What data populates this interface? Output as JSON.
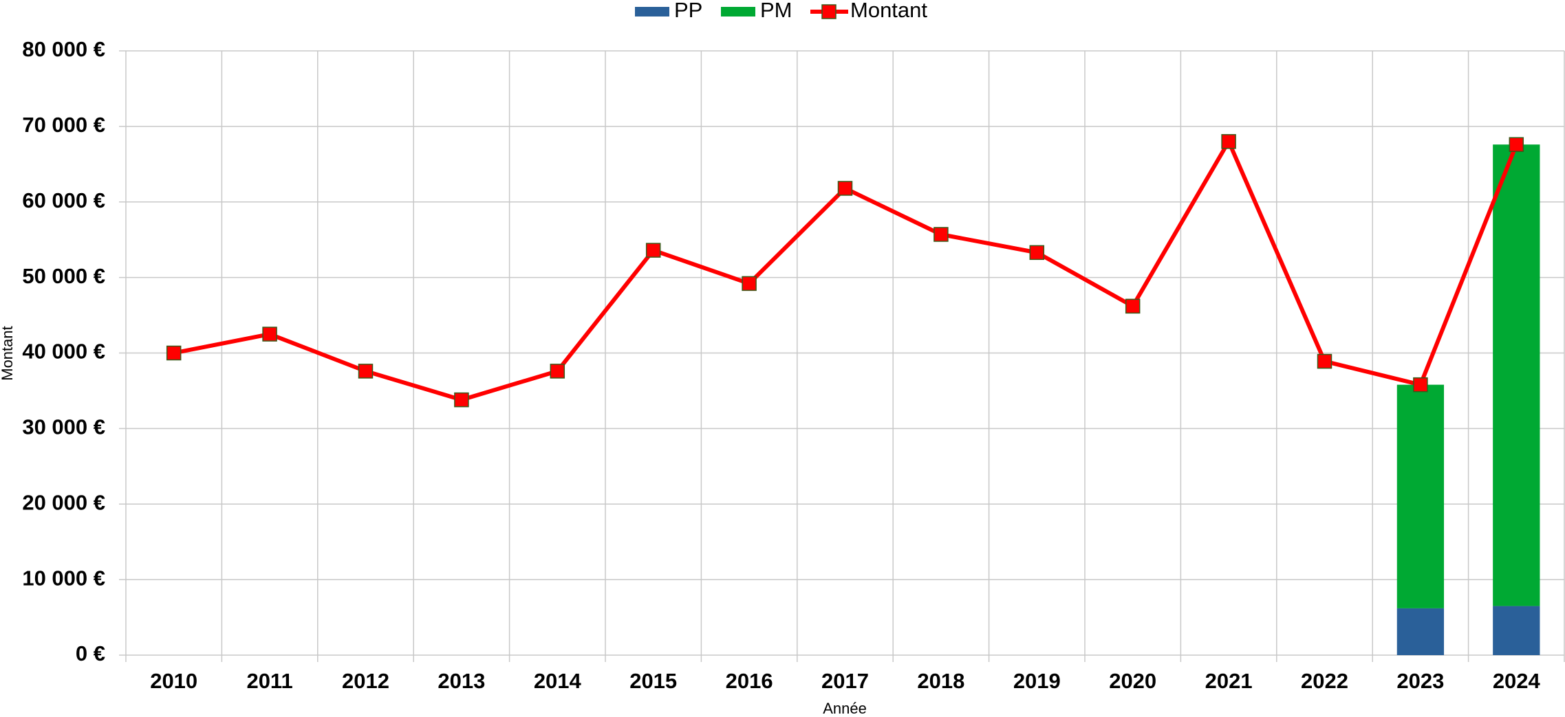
{
  "chart_data": {
    "type": "bar",
    "stacked": true,
    "x_label": "Année",
    "y_label": "Montant",
    "categories": [
      "2010",
      "2011",
      "2012",
      "2013",
      "2014",
      "2015",
      "2016",
      "2017",
      "2018",
      "2019",
      "2020",
      "2021",
      "2022",
      "2023",
      "2024"
    ],
    "series": [
      {
        "name": "PP",
        "type": "bar",
        "color": "#2a6099",
        "values": [
          null,
          null,
          null,
          null,
          null,
          null,
          null,
          null,
          null,
          null,
          null,
          null,
          null,
          6200,
          6500
        ]
      },
      {
        "name": "PM",
        "type": "bar",
        "color": "#00a933",
        "values": [
          null,
          null,
          null,
          null,
          null,
          null,
          null,
          null,
          null,
          null,
          null,
          null,
          null,
          29600,
          61100
        ]
      },
      {
        "name": "Montant",
        "type": "line",
        "color": "#ff0000",
        "values": [
          40000,
          42500,
          37600,
          33800,
          37600,
          53600,
          49200,
          61800,
          55700,
          53300,
          46200,
          68000,
          38900,
          35800,
          67600
        ]
      }
    ],
    "ylim": [
      0,
      80000
    ],
    "yticks": [
      {
        "value": 0,
        "label": "0 €"
      },
      {
        "value": 10000,
        "label": "10 000 €"
      },
      {
        "value": 20000,
        "label": "20 000 €"
      },
      {
        "value": 30000,
        "label": "30 000 €"
      },
      {
        "value": 40000,
        "label": "40 000 €"
      },
      {
        "value": 50000,
        "label": "50 000 €"
      },
      {
        "value": 60000,
        "label": "60 000 €"
      },
      {
        "value": 70000,
        "label": "70 000 €"
      },
      {
        "value": 80000,
        "label": "80 000 €"
      }
    ],
    "grid": true,
    "legend": "top"
  }
}
